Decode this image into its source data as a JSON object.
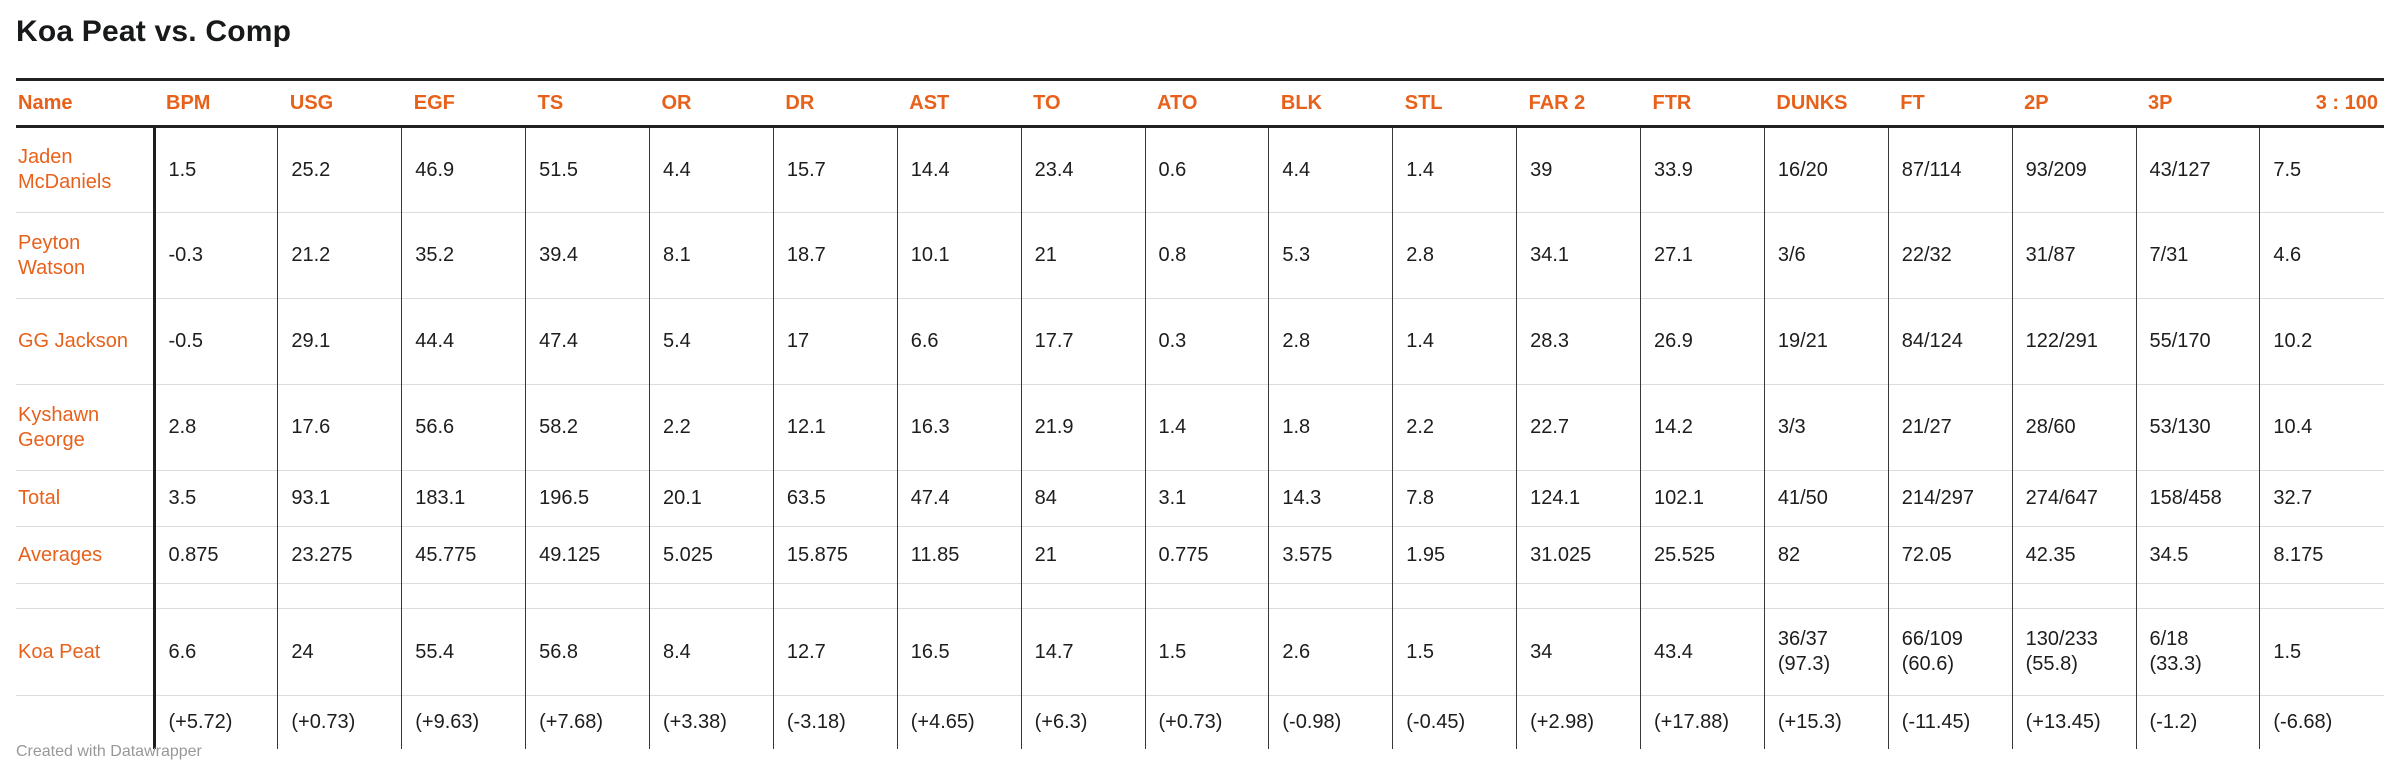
{
  "title": "Koa Peat vs. Comp",
  "footer": "Created with Datawrapper",
  "colors": {
    "accent_orange": "#e8611b",
    "text": "#1d1d1d",
    "border_dark": "#212121",
    "border_light": "#dcdcdc",
    "footer_gray": "#989898"
  },
  "chart_data": {
    "type": "table",
    "title": "Koa Peat vs. Comp",
    "columns": [
      "Name",
      "BPM",
      "USG",
      "EGF",
      "TS",
      "OR",
      "DR",
      "AST",
      "TO",
      "ATO",
      "BLK",
      "STL",
      "FAR 2",
      "FTR",
      "DUNKS",
      "FT",
      "2P",
      "3P",
      "3 : 100"
    ],
    "rows": [
      {
        "kind": "player",
        "name": "Jaden McDaniels",
        "values": [
          "1.5",
          "25.2",
          "46.9",
          "51.5",
          "4.4",
          "15.7",
          "14.4",
          "23.4",
          "0.6",
          "4.4",
          "1.4",
          "39",
          "33.9",
          "16/20",
          "87/114",
          "93/209",
          "43/127",
          "7.5"
        ]
      },
      {
        "kind": "player",
        "name": "Peyton Watson",
        "values": [
          "-0.3",
          "21.2",
          "35.2",
          "39.4",
          "8.1",
          "18.7",
          "10.1",
          "21",
          "0.8",
          "5.3",
          "2.8",
          "34.1",
          "27.1",
          "3/6",
          "22/32",
          "31/87",
          "7/31",
          "4.6"
        ]
      },
      {
        "kind": "player",
        "name": "GG Jackson",
        "values": [
          "-0.5",
          "29.1",
          "44.4",
          "47.4",
          "5.4",
          "17",
          "6.6",
          "17.7",
          "0.3",
          "2.8",
          "1.4",
          "28.3",
          "26.9",
          "19/21",
          "84/124",
          "122/291",
          "55/170",
          "10.2"
        ]
      },
      {
        "kind": "player",
        "name": "Kyshawn George",
        "values": [
          "2.8",
          "17.6",
          "56.6",
          "58.2",
          "2.2",
          "12.1",
          "16.3",
          "21.9",
          "1.4",
          "1.8",
          "2.2",
          "22.7",
          "14.2",
          "3/3",
          "21/27",
          "28/60",
          "53/130",
          "10.4"
        ]
      },
      {
        "kind": "total",
        "name": "Total",
        "values": [
          "3.5",
          "93.1",
          "183.1",
          "196.5",
          "20.1",
          "63.5",
          "47.4",
          "84",
          "3.1",
          "14.3",
          "7.8",
          "124.1",
          "102.1",
          "41/50",
          "214/297",
          "274/647",
          "158/458",
          "32.7"
        ]
      },
      {
        "kind": "averages",
        "name": "Averages",
        "values": [
          "0.875",
          "23.275",
          "45.775",
          "49.125",
          "5.025",
          "15.875",
          "11.85",
          "21",
          "0.775",
          "3.575",
          "1.95",
          "31.025",
          "25.525",
          "82",
          "72.05",
          "42.35",
          "34.5",
          "8.175"
        ]
      },
      {
        "kind": "spacer",
        "name": "",
        "values": [
          "",
          "",
          "",
          "",
          "",
          "",
          "",
          "",
          "",
          "",
          "",
          "",
          "",
          "",
          "",
          "",
          "",
          ""
        ]
      },
      {
        "kind": "koa",
        "name": "Koa Peat",
        "values": [
          "6.6",
          "24",
          "55.4",
          "56.8",
          "8.4",
          "12.7",
          "16.5",
          "14.7",
          "1.5",
          "2.6",
          "1.5",
          "34",
          "43.4",
          "36/37\n(97.3)",
          "66/109\n(60.6)",
          "130/233\n(55.8)",
          "6/18\n(33.3)",
          "1.5"
        ]
      },
      {
        "kind": "diff",
        "name": "",
        "values": [
          "(+5.72)",
          "(+0.73)",
          "(+9.63)",
          "(+7.68)",
          "(+3.38)",
          "(-3.18)",
          "(+4.65)",
          "(+6.3)",
          "(+0.73)",
          "(-0.98)",
          "(-0.45)",
          "(+2.98)",
          "(+17.88)",
          "(+15.3)",
          "(-11.45)",
          "(+13.45)",
          "(-1.2)",
          "(-6.68)"
        ]
      }
    ]
  }
}
